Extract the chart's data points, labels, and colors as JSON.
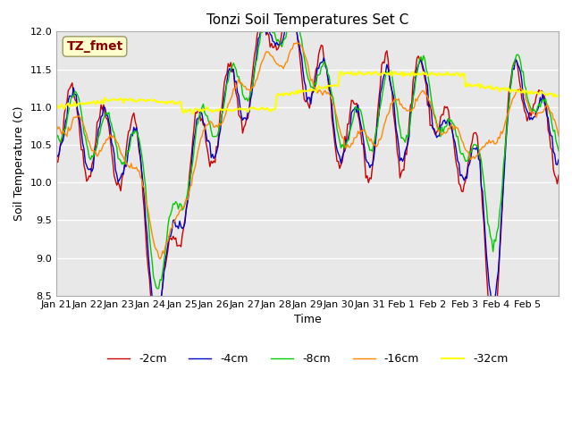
{
  "title": "Tonzi Soil Temperatures Set C",
  "xlabel": "Time",
  "ylabel": "Soil Temperature (C)",
  "ylim": [
    8.5,
    12.0
  ],
  "annotation_text": "TZ_fmet",
  "annotation_color": "#8B0000",
  "annotation_bg": "#FFFFCC",
  "bg_color": "#E8E8E8",
  "plot_bg": "#E8E8E8",
  "xtick_labels": [
    "Jan 21",
    "Jan 22",
    "Jan 23",
    "Jan 24",
    "Jan 25",
    "Jan 26",
    "Jan 27",
    "Jan 28",
    "Jan 29",
    "Jan 30",
    "Jan 31",
    "Feb 1",
    "Feb 2",
    "Feb 3",
    "Feb 4",
    "Feb 5"
  ],
  "series": {
    "neg2cm": {
      "label": "-2cm",
      "color": "#CC0000"
    },
    "neg4cm": {
      "label": "-4cm",
      "color": "#0000CC"
    },
    "neg8cm": {
      "label": "-8cm",
      "color": "#00CC00"
    },
    "neg16cm": {
      "label": "-16cm",
      "color": "#FF8800"
    },
    "neg32cm": {
      "label": "-32cm",
      "color": "#FFFF00"
    }
  },
  "legend_loc": "lower center",
  "legend_ncol": 5
}
